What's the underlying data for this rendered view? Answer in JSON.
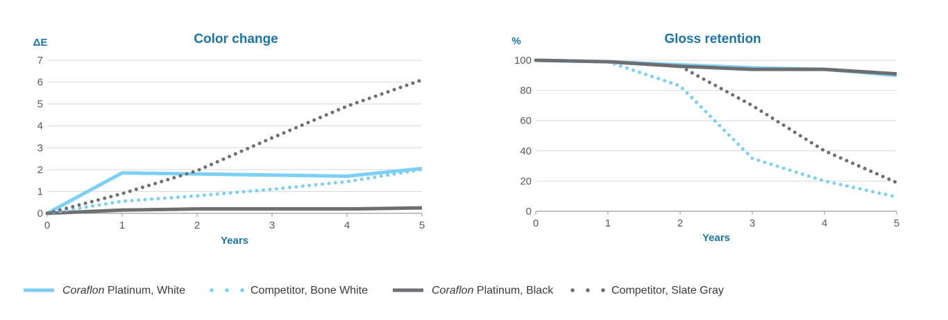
{
  "colors": {
    "title": "#1b75a8",
    "grid": "#d9d9d9",
    "axis": "#9a9a9a",
    "tick_text": "#58595b",
    "light_blue": "#7dd0f5",
    "dark_gray": "#6d6e70"
  },
  "chart_data": [
    {
      "type": "line",
      "title": "Color change",
      "ylabel": "ΔE",
      "xlabel": "Years",
      "x": [
        0,
        1,
        2,
        3,
        4,
        5
      ],
      "xlim": [
        0,
        5
      ],
      "ylim": [
        0,
        7
      ],
      "yticks": [
        0,
        1,
        2,
        3,
        4,
        5,
        6,
        7
      ],
      "series": [
        {
          "name": "Coraflon Platinum, White",
          "style": "solid",
          "color": "#7dd0f5",
          "values": [
            0,
            1.85,
            1.8,
            1.75,
            1.7,
            2.05
          ]
        },
        {
          "name": "Competitor, Bone White",
          "style": "dotted",
          "color": "#7dd0f5",
          "values": [
            0,
            0.55,
            0.8,
            1.1,
            1.45,
            2.0
          ]
        },
        {
          "name": "Coraflon Platinum, Black",
          "style": "solid",
          "color": "#6d6e70",
          "values": [
            0,
            0.15,
            0.2,
            0.2,
            0.2,
            0.25
          ]
        },
        {
          "name": "Competitor, Slate Gray",
          "style": "dotted",
          "color": "#6d6e70",
          "values": [
            0,
            0.9,
            1.95,
            3.45,
            4.9,
            6.1
          ]
        }
      ]
    },
    {
      "type": "line",
      "title": "Gloss retention",
      "ylabel": "%",
      "xlabel": "Years",
      "x": [
        0,
        1,
        2,
        3,
        4,
        5
      ],
      "xlim": [
        0,
        5
      ],
      "ylim": [
        0,
        100
      ],
      "yticks": [
        0,
        20,
        40,
        60,
        80,
        100
      ],
      "series": [
        {
          "name": "Coraflon Platinum, White",
          "style": "solid",
          "color": "#7dd0f5",
          "values": [
            100,
            99,
            97,
            95,
            94,
            90
          ]
        },
        {
          "name": "Competitor, Bone White",
          "style": "dotted",
          "color": "#7dd0f5",
          "values": [
            100,
            99,
            83,
            35,
            20,
            9.5
          ]
        },
        {
          "name": "Coraflon Platinum, Black",
          "style": "solid",
          "color": "#6d6e70",
          "values": [
            100,
            99,
            96,
            94,
            94,
            91
          ]
        },
        {
          "name": "Competitor, Slate Gray",
          "style": "dotted",
          "color": "#6d6e70",
          "values": [
            100,
            99,
            96,
            70,
            40,
            19
          ]
        }
      ]
    }
  ],
  "legend": {
    "items": [
      {
        "brand": "Coraflon",
        "rest": " Platinum, White",
        "style": "solid",
        "color": "#7dd0f5"
      },
      {
        "brand": "",
        "rest": "Competitor, Bone White",
        "style": "dotted",
        "color": "#7dd0f5"
      },
      {
        "brand": "Coraflon",
        "rest": " Platinum, Black",
        "style": "solid",
        "color": "#6d6e70"
      },
      {
        "brand": "",
        "rest": "Competitor, Slate Gray",
        "style": "dotted",
        "color": "#6d6e70"
      }
    ]
  }
}
